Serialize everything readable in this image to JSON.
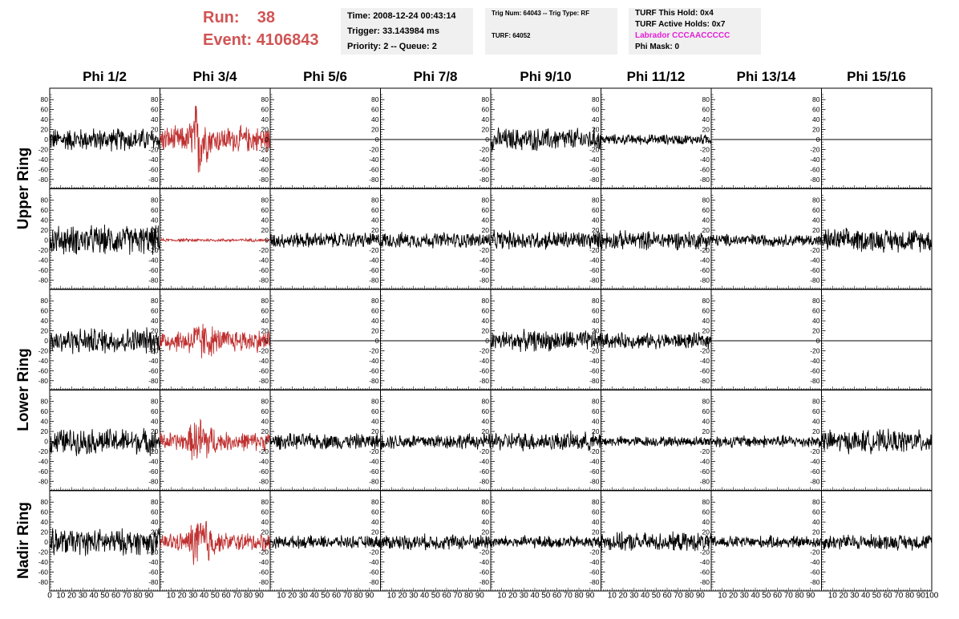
{
  "header": {
    "run_label": "Run:",
    "run_value": "38",
    "event_label": "Event:",
    "event_value": "4106843",
    "time": "Time: 2008-12-24 00:43:14",
    "trigger": "Trigger: 33.143984 ms",
    "priority": "Priority: 2 -- Queue: 2",
    "trig_num": "Trig Num: 64043 -- Trig Type: RF",
    "turf": "TURF: 64052",
    "turf_this_hold": "TURF This Hold: 0x4",
    "turf_active_holds": "TURF Active Holds: 0x7",
    "labrador": "Labrador CCCAACCCCC",
    "phi_mask": "Phi Mask: 0"
  },
  "columns": [
    "Phi 1/2",
    "Phi 3/4",
    "Phi 5/6",
    "Phi 7/8",
    "Phi 9/10",
    "Phi 11/12",
    "Phi 13/14",
    "Phi 15/16"
  ],
  "rings": [
    {
      "label": "Upper Ring",
      "rows": [
        0,
        1
      ]
    },
    {
      "label": "Lower Ring",
      "rows": [
        2,
        3
      ]
    },
    {
      "label": "Nadir Ring",
      "rows": [
        4
      ]
    }
  ],
  "colors": {
    "highlight_trace": "#c03030",
    "normal_trace": "#000000",
    "run_text": "#d05454",
    "labrador_text": "#e21fd6",
    "info_bg": "#f0f0f0"
  },
  "chart_data": {
    "type": "line",
    "description_grid": "5 rows x 8 columns of waveform panels",
    "ylim": [
      -90,
      90
    ],
    "yticks": [
      -80,
      -60,
      -40,
      -20,
      0,
      20,
      40,
      60,
      80
    ],
    "xlim": [
      0,
      100
    ],
    "xticks": [
      0,
      10,
      20,
      30,
      40,
      50,
      60,
      70,
      80,
      90,
      100
    ],
    "panels": [
      [
        {
          "amp": 22,
          "flat": false,
          "red": false
        },
        {
          "amp": 25,
          "flat": false,
          "red": true,
          "burst": [
            30,
            40,
            80
          ]
        },
        {
          "flat": true
        },
        {
          "flat": true
        },
        {
          "amp": 22,
          "flat": false,
          "red": false
        },
        {
          "amp": 10,
          "flat": false,
          "red": false
        },
        {
          "flat": true
        },
        {
          "flat": true
        }
      ],
      [
        {
          "amp": 28,
          "flat": false,
          "red": false
        },
        {
          "amp": 3,
          "flat": false,
          "red": true
        },
        {
          "amp": 15,
          "flat": false,
          "red": false
        },
        {
          "amp": 15,
          "flat": false,
          "red": false
        },
        {
          "amp": 18,
          "flat": false,
          "red": false
        },
        {
          "amp": 18,
          "flat": false,
          "red": false
        },
        {
          "amp": 12,
          "flat": false,
          "red": false
        },
        {
          "amp": 22,
          "flat": false,
          "red": false
        }
      ],
      [
        {
          "amp": 25,
          "flat": false,
          "red": false
        },
        {
          "amp": 22,
          "flat": false,
          "red": true,
          "burst": [
            30,
            45,
            40
          ]
        },
        {
          "flat": true
        },
        {
          "flat": true
        },
        {
          "amp": 20,
          "flat": false,
          "red": false
        },
        {
          "amp": 15,
          "flat": false,
          "red": false
        },
        {
          "flat": true
        },
        {
          "flat": true
        }
      ],
      [
        {
          "amp": 25,
          "flat": false,
          "red": false
        },
        {
          "amp": 18,
          "flat": false,
          "red": true,
          "burst": [
            30,
            45,
            50
          ]
        },
        {
          "amp": 15,
          "flat": false,
          "red": false
        },
        {
          "amp": 15,
          "flat": false,
          "red": false
        },
        {
          "amp": 18,
          "flat": false,
          "red": false
        },
        {
          "amp": 10,
          "flat": false,
          "red": false
        },
        {
          "amp": 12,
          "flat": false,
          "red": false
        },
        {
          "amp": 22,
          "flat": false,
          "red": false
        }
      ],
      [
        {
          "amp": 25,
          "flat": false,
          "red": false
        },
        {
          "amp": 18,
          "flat": false,
          "red": true,
          "burst": [
            30,
            45,
            60
          ]
        },
        {
          "amp": 12,
          "flat": false,
          "red": false
        },
        {
          "amp": 15,
          "flat": false,
          "red": false
        },
        {
          "amp": 12,
          "flat": false,
          "red": false
        },
        {
          "amp": 18,
          "flat": false,
          "red": false
        },
        {
          "amp": 12,
          "flat": false,
          "red": false
        },
        {
          "amp": 15,
          "flat": false,
          "red": false
        }
      ]
    ]
  }
}
